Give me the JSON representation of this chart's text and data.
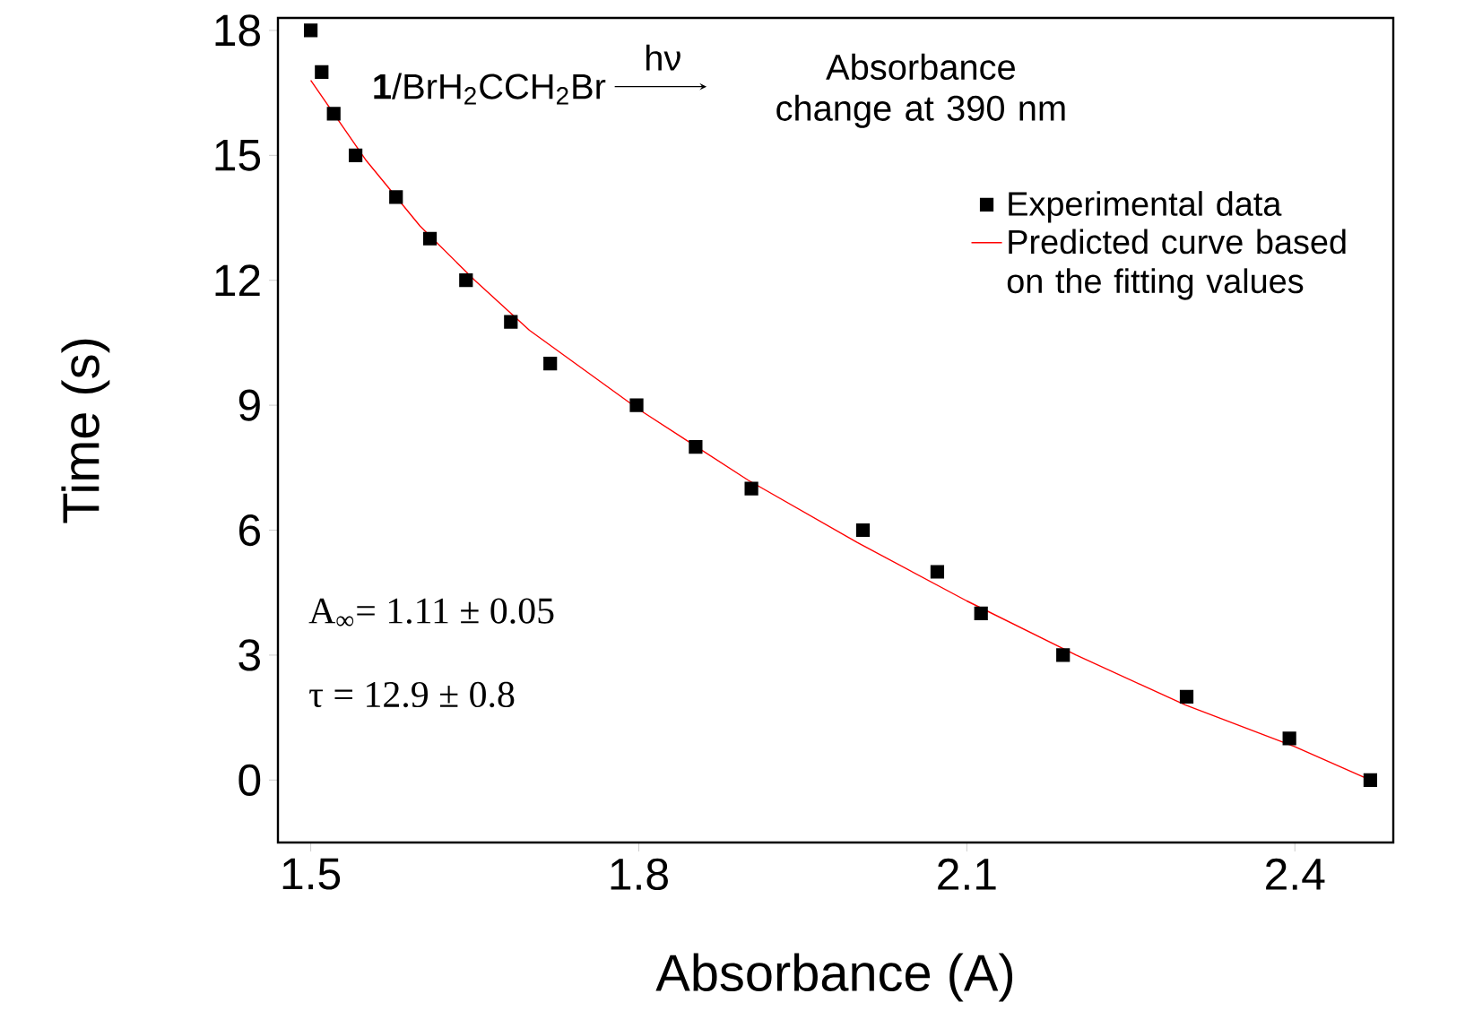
{
  "chart_data": {
    "type": "scatter",
    "xlabel": "Absorbance (A)",
    "ylabel": "Time (s)",
    "xlim": [
      1.47,
      2.49
    ],
    "ylim": [
      -1.5,
      18.3
    ],
    "xticks": [
      1.5,
      1.8,
      2.1,
      2.4
    ],
    "yticks": [
      0,
      3,
      6,
      9,
      12,
      15,
      18
    ],
    "legend": "top right",
    "grid": false,
    "series": [
      {
        "name": "Experimental data",
        "marker": "square",
        "color": "#000000",
        "x": [
          1.5,
          1.51,
          1.521,
          1.541,
          1.578,
          1.609,
          1.642,
          1.683,
          1.719,
          1.798,
          1.852,
          1.903,
          2.005,
          2.073,
          2.113,
          2.188,
          2.301,
          2.395,
          2.469
        ],
        "values": [
          18,
          17,
          16,
          15,
          14,
          13,
          12,
          11,
          10,
          9,
          8,
          7,
          6,
          5,
          4,
          3,
          2,
          1,
          0
        ]
      },
      {
        "name": "Predicted curve based on the fitting values",
        "type": "line",
        "color": "#ff0000",
        "x": [
          1.5,
          1.55,
          1.6,
          1.65,
          1.7,
          1.8,
          1.9,
          2.0,
          2.1,
          2.2,
          2.3,
          2.4,
          2.469
        ],
        "values": [
          16.8,
          14.9,
          13.3,
          12.0,
          10.8,
          8.9,
          7.2,
          5.7,
          4.3,
          3.0,
          1.8,
          0.8,
          0
        ]
      }
    ],
    "annotations": [
      "**1**/BrH$_{2}$CCH$_{2}$Br",
      "hν",
      "Absorbance change at 390 nm",
      "A$_{∞}$= 1.11 ± 0.05",
      "τ = 12.9 ± 0.8"
    ]
  }
}
